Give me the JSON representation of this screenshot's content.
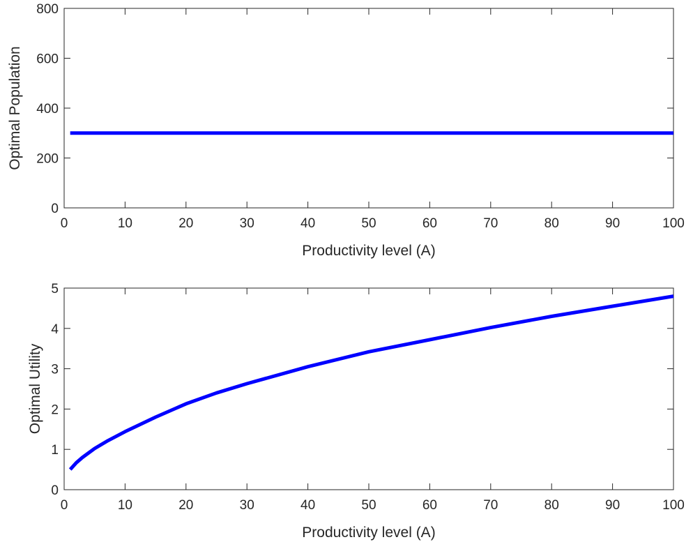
{
  "chart_data": [
    {
      "type": "line",
      "xlabel": "Productivity level (A)",
      "ylabel": "Optimal Population",
      "xlim": [
        0,
        100
      ],
      "ylim": [
        0,
        800
      ],
      "xticks": [
        "0",
        "10",
        "20",
        "30",
        "40",
        "50",
        "60",
        "70",
        "80",
        "90",
        "100"
      ],
      "yticks": [
        "0",
        "200",
        "400",
        "600",
        "800"
      ],
      "grid": false,
      "legend": "none",
      "color": "#0000ff",
      "series": [
        {
          "x": [
            1,
            100
          ],
          "y": [
            300,
            300
          ]
        }
      ]
    },
    {
      "type": "line",
      "xlabel": "Productivity level (A)",
      "ylabel": "Optimal Utility",
      "xlim": [
        0,
        100
      ],
      "ylim": [
        0,
        5
      ],
      "xticks": [
        "0",
        "10",
        "20",
        "30",
        "40",
        "50",
        "60",
        "70",
        "80",
        "90",
        "100"
      ],
      "yticks": [
        "0",
        "1",
        "2",
        "3",
        "4",
        "5"
      ],
      "grid": false,
      "legend": "none",
      "color": "#0000ff",
      "series": [
        {
          "x": [
            1,
            2,
            3,
            5,
            7,
            10,
            15,
            20,
            25,
            30,
            40,
            50,
            60,
            70,
            80,
            90,
            100
          ],
          "y": [
            0.5,
            0.67,
            0.8,
            1.02,
            1.2,
            1.44,
            1.8,
            2.13,
            2.4,
            2.63,
            3.05,
            3.42,
            3.72,
            4.02,
            4.3,
            4.55,
            4.8
          ]
        }
      ]
    }
  ]
}
